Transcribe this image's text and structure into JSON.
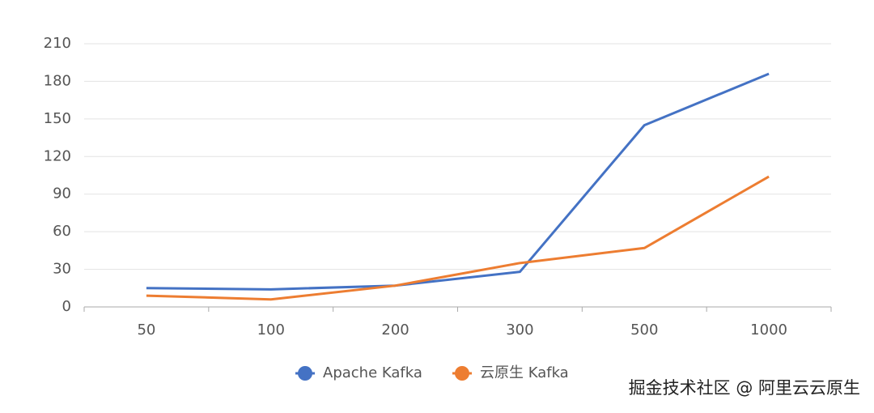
{
  "chart_data": {
    "type": "line",
    "categories": [
      "50",
      "100",
      "200",
      "300",
      "500",
      "1000"
    ],
    "series": [
      {
        "name": "Apache Kafka",
        "color": "#4472c4",
        "values": [
          15,
          14,
          17,
          28,
          145,
          186
        ]
      },
      {
        "name": "云原生 Kafka",
        "color": "#ed7d31",
        "values": [
          9,
          6,
          17,
          35,
          47,
          104
        ]
      }
    ],
    "ylim": [
      0,
      210
    ],
    "yticks": [
      0,
      30,
      60,
      90,
      120,
      150,
      180,
      210
    ],
    "grid": true,
    "legend": "bottom"
  },
  "watermark": "掘金技术社区 @ 阿里云云原生"
}
